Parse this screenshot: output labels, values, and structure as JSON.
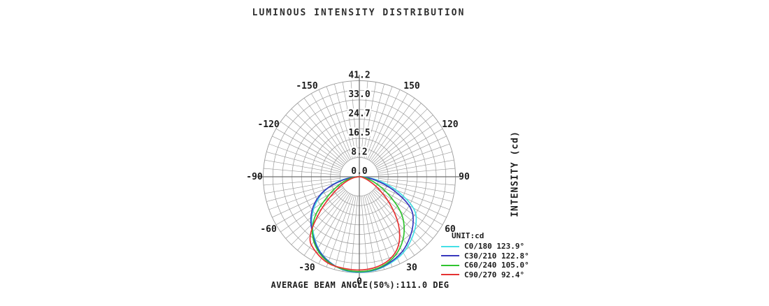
{
  "title": "LUMINOUS INTENSITY DISTRIBUTION",
  "right_axis_label": "INTENSITY (cd)",
  "footer": "AVERAGE BEAM ANGLE(50%):111.0 DEG",
  "legend": {
    "unit_label": "UNIT:cd",
    "entries": [
      {
        "label": "C0/180 123.9°",
        "color": "#45DFE6"
      },
      {
        "label": "C30/210 122.8°",
        "color": "#3838BE"
      },
      {
        "label": "C60/240 105.0°",
        "color": "#2FC42F"
      },
      {
        "label": "C90/270 92.4°",
        "color": "#E53232"
      }
    ]
  },
  "chart_data": {
    "type": "polar-line",
    "title": "LUMINOUS INTENSITY DISTRIBUTION",
    "unit": "cd",
    "radial_axis_label": "INTENSITY (cd)",
    "radial_ticks": [
      0.0,
      8.2,
      16.5,
      24.7,
      33.0,
      41.2
    ],
    "radial_tick_labels": [
      "0.0",
      "8.2",
      "16.5",
      "24.7",
      "33.0",
      "41.2"
    ],
    "radial_max": 41.2,
    "angle_tick_labels": [
      0,
      30,
      60,
      90,
      120,
      150,
      -30,
      -60,
      -90,
      -120,
      -150
    ],
    "orientation": "0 deg at nadir (bottom), positive angles to the right; spokes every 5 deg; rings every 4.12 cd",
    "average_beam_angle_50pct": "111.0 DEG",
    "legend_position": "bottom-right",
    "angles_deg": [
      -95,
      -90,
      -80,
      -70,
      -60,
      -50,
      -40,
      -30,
      -20,
      -10,
      0,
      10,
      20,
      30,
      40,
      50,
      60,
      70,
      80,
      90,
      95
    ],
    "series": [
      {
        "name": "C0/180",
        "beam_angle": "123.9°",
        "color": "#45DFE6",
        "values": [
          0,
          2.2,
          8.5,
          15.5,
          21.5,
          27.0,
          31.0,
          35.8,
          38.8,
          40.9,
          41.2,
          40.9,
          39.5,
          38.0,
          35.0,
          32.0,
          28.0,
          18.0,
          9.0,
          2.2,
          0
        ]
      },
      {
        "name": "C30/210",
        "beam_angle": "122.8°",
        "color": "#3838BE",
        "values": [
          0,
          2.0,
          7.5,
          16.0,
          22.5,
          27.5,
          31.5,
          36.0,
          39.0,
          40.7,
          41.0,
          40.7,
          39.2,
          37.3,
          34.0,
          30.5,
          26.0,
          15.5,
          7.0,
          1.5,
          0
        ]
      },
      {
        "name": "C60/240",
        "beam_angle": "105.0°",
        "color": "#2FC42F",
        "values": [
          0,
          1.2,
          4.5,
          9.0,
          15.0,
          25.0,
          32.0,
          36.5,
          39.3,
          40.5,
          40.9,
          40.5,
          38.8,
          35.5,
          30.5,
          24.0,
          14.5,
          7.5,
          3.0,
          1.0,
          0
        ]
      },
      {
        "name": "C90/270",
        "beam_angle": "92.4°",
        "color": "#E53232",
        "values": [
          0,
          0.8,
          3.0,
          6.5,
          12.0,
          22.0,
          34.5,
          37.5,
          39.8,
          40.0,
          40.2,
          39.8,
          38.2,
          34.5,
          27.0,
          17.0,
          9.0,
          4.0,
          1.5,
          0.5,
          0
        ]
      }
    ]
  }
}
